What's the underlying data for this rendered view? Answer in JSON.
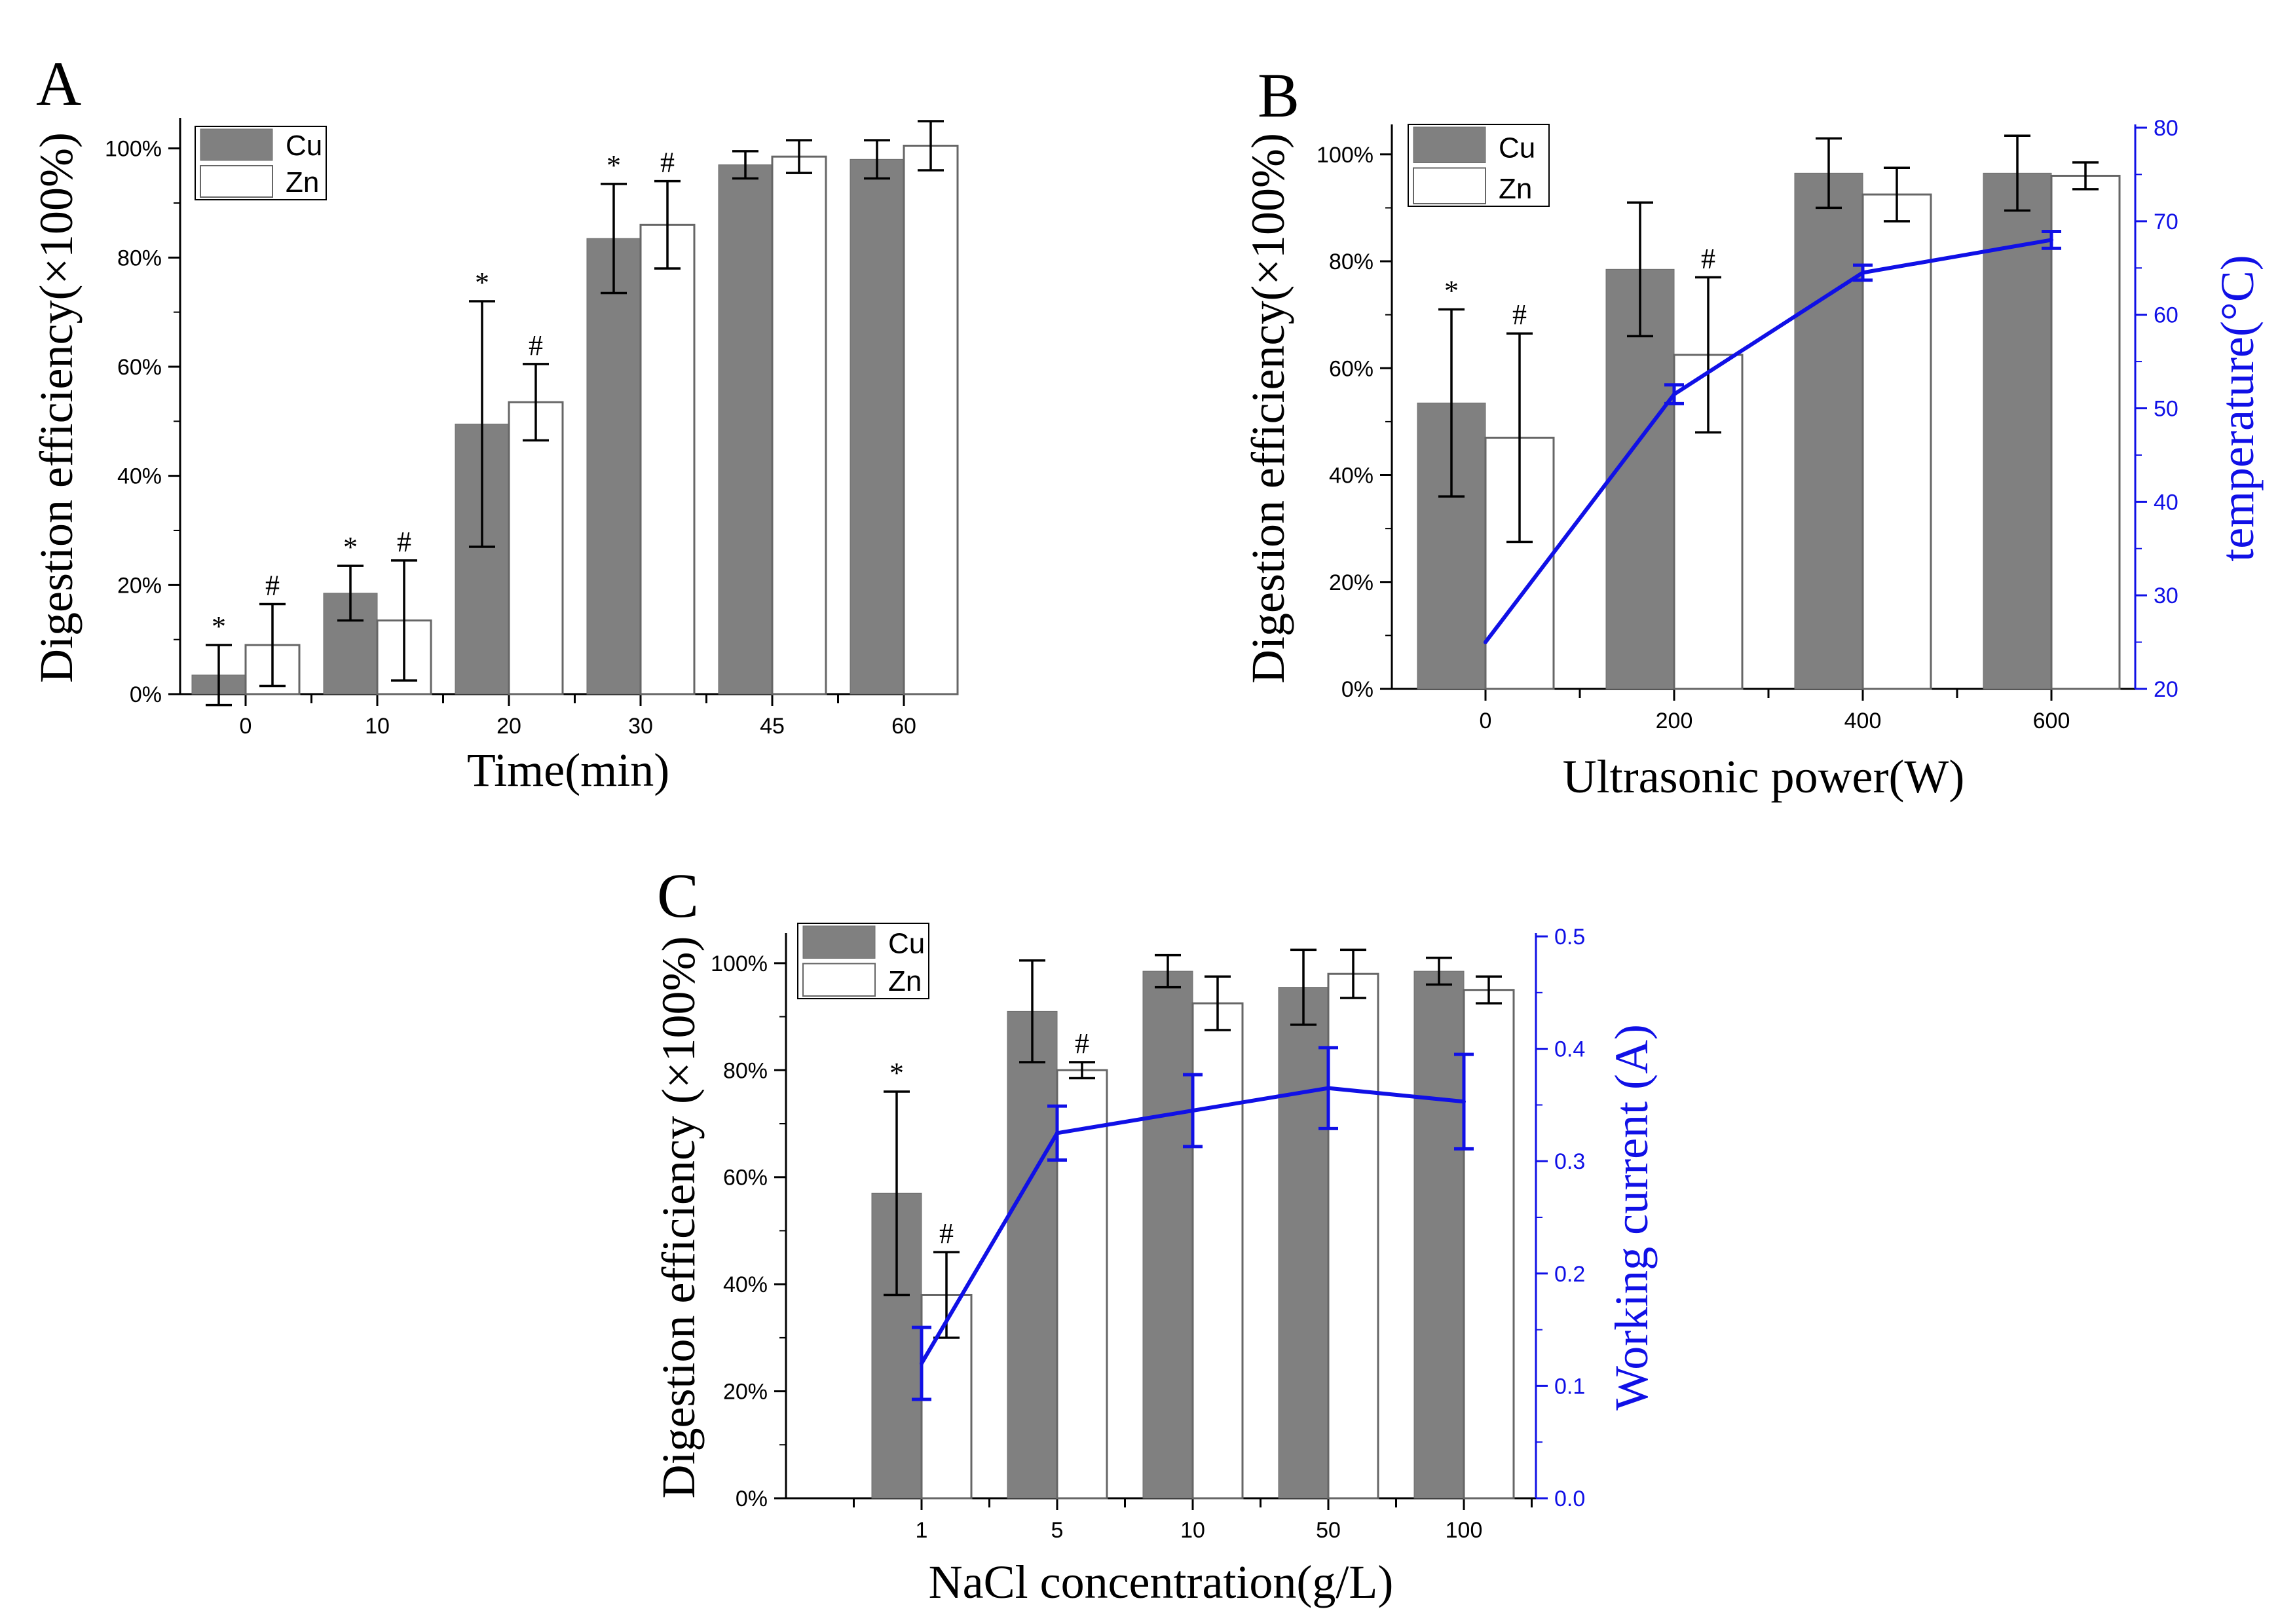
{
  "chart_data": [
    {
      "panel": "A",
      "type": "bar",
      "title": "",
      "xlabel": "Time(min)",
      "ylabel": "Digestion efficiency(×100%)",
      "categories": [
        "0",
        "10",
        "20",
        "30",
        "45",
        "60"
      ],
      "ylim": [
        0,
        105
      ],
      "yticks": [
        "0%",
        "20%",
        "40%",
        "60%",
        "80%",
        "100%"
      ],
      "legend": "top-left",
      "series": [
        {
          "name": "Cu",
          "color": "#808080",
          "values": [
            3.5,
            18.5,
            49.5,
            83.5,
            97,
            98
          ],
          "errors": [
            5.5,
            5,
            22.5,
            10,
            2.5,
            3.5
          ],
          "markers": [
            "*",
            "*",
            "*",
            "*",
            "",
            ""
          ]
        },
        {
          "name": "Zn",
          "color": "#ffffff",
          "values": [
            9,
            13.5,
            53.5,
            86,
            98.5,
            100.5
          ],
          "errors": [
            7.5,
            11,
            7,
            8,
            3,
            4.5
          ],
          "markers": [
            "#",
            "#",
            "#",
            "#",
            "",
            ""
          ]
        }
      ]
    },
    {
      "panel": "B",
      "type": "bar",
      "title": "",
      "xlabel": "Ultrasonic power(W)",
      "ylabel": "Digestion efficiency(×100%)",
      "y2label": "temperature(°C)",
      "categories": [
        "0",
        "200",
        "400",
        "600"
      ],
      "ylim": [
        0,
        105
      ],
      "yticks": [
        "0%",
        "20%",
        "40%",
        "60%",
        "80%",
        "100%"
      ],
      "y2lim": [
        20,
        80
      ],
      "y2ticks": [
        "20",
        "30",
        "40",
        "50",
        "60",
        "70",
        "80"
      ],
      "legend": "top-left",
      "series": [
        {
          "name": "Cu",
          "color": "#808080",
          "values": [
            53.5,
            78.5,
            96.5,
            96.5
          ],
          "errors": [
            17.5,
            12.5,
            6.5,
            7
          ],
          "markers": [
            "*",
            "",
            "",
            ""
          ]
        },
        {
          "name": "Zn",
          "color": "#ffffff",
          "values": [
            47,
            62.5,
            92.5,
            96
          ],
          "errors": [
            19.5,
            14.5,
            5,
            2.5
          ],
          "markers": [
            "#",
            "#",
            "",
            ""
          ]
        }
      ],
      "line": {
        "name": "temperature",
        "color": "#1010e6",
        "values": [
          25,
          51.5,
          64.5,
          68
        ],
        "errors": [
          0,
          1,
          0.8,
          0.9
        ]
      }
    },
    {
      "panel": "C",
      "type": "bar",
      "title": "",
      "xlabel": "NaCl concentration(g/L)",
      "ylabel": "Digestion efficiency (×100%)",
      "y2label": "Working current (A)",
      "categories": [
        "1",
        "5",
        "10",
        "50",
        "100"
      ],
      "ylim": [
        0,
        105
      ],
      "yticks": [
        "0%",
        "20%",
        "40%",
        "60%",
        "80%",
        "100%"
      ],
      "y2lim": [
        0,
        0.5
      ],
      "y2ticks": [
        "0.0",
        "0.1",
        "0.2",
        "0.3",
        "0.4",
        "0.5"
      ],
      "legend": "top-left",
      "series": [
        {
          "name": "Cu",
          "color": "#808080",
          "values": [
            57,
            91,
            98.5,
            95.5,
            98.5
          ],
          "errors": [
            19,
            9.5,
            3,
            7,
            2.5
          ],
          "markers": [
            "*",
            "",
            "",
            "",
            ""
          ]
        },
        {
          "name": "Zn",
          "color": "#ffffff",
          "values": [
            38,
            80,
            92.5,
            98,
            95
          ],
          "errors": [
            8,
            1.5,
            5,
            4.5,
            2.5
          ],
          "markers": [
            "#",
            "#",
            "",
            "",
            ""
          ]
        }
      ],
      "line": {
        "name": "Working current",
        "color": "#1010e6",
        "values": [
          0.12,
          0.325,
          0.345,
          0.365,
          0.353
        ],
        "errors": [
          0.032,
          0.024,
          0.032,
          0.036,
          0.042
        ]
      }
    }
  ]
}
